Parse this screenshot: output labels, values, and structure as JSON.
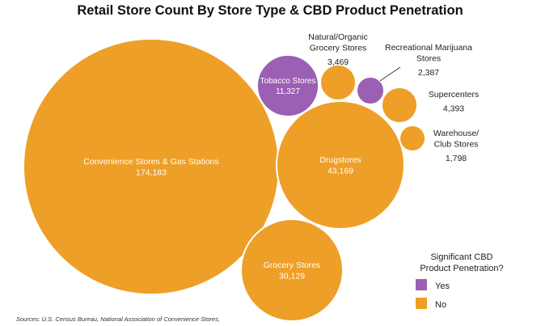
{
  "chart_data": {
    "type": "bubble",
    "title": "Retail Store Count By Store Type & CBD Product Penetration",
    "legend": {
      "title_line1": "Significant CBD",
      "title_line2": "Product Penetration?",
      "placement": "bottom-right",
      "items": [
        {
          "label": "Yes",
          "color": "#9b5fb3"
        },
        {
          "label": "No",
          "color": "#ee9f27"
        }
      ]
    },
    "bubbles": [
      {
        "key": "convenience",
        "name_lines": [
          "Convenience Stores & Gas Stations"
        ],
        "value_label": "174,183",
        "value": 174183,
        "significant_cbd": "No"
      },
      {
        "key": "drugstores",
        "name_lines": [
          "Drugstores"
        ],
        "value_label": "43,169",
        "value": 43169,
        "significant_cbd": "No"
      },
      {
        "key": "grocery",
        "name_lines": [
          "Grocery Stores"
        ],
        "value_label": "30,129",
        "value": 30129,
        "significant_cbd": "No"
      },
      {
        "key": "tobacco",
        "name_lines": [
          "Tobacco Stores"
        ],
        "value_label": "11,327",
        "value": 11327,
        "significant_cbd": "Yes"
      },
      {
        "key": "natural",
        "name_lines": [
          "Natural/Organic",
          "Grocery Stores"
        ],
        "value_label": "3,469",
        "value": 3469,
        "significant_cbd": "No"
      },
      {
        "key": "recreational",
        "name_lines": [
          "Recreational Marijuana",
          "Stores"
        ],
        "value_label": "2,387",
        "value": 2387,
        "significant_cbd": "Yes"
      },
      {
        "key": "supercenters",
        "name_lines": [
          "Supercenters"
        ],
        "value_label": "4,393",
        "value": 4393,
        "significant_cbd": "No"
      },
      {
        "key": "warehouse",
        "name_lines": [
          "Warehouse/",
          "Club Stores"
        ],
        "value_label": "1,798",
        "value": 1798,
        "significant_cbd": "No"
      }
    ],
    "source": "Sources: U.S. Census Bureau, National Association of Convenience Stores,"
  }
}
